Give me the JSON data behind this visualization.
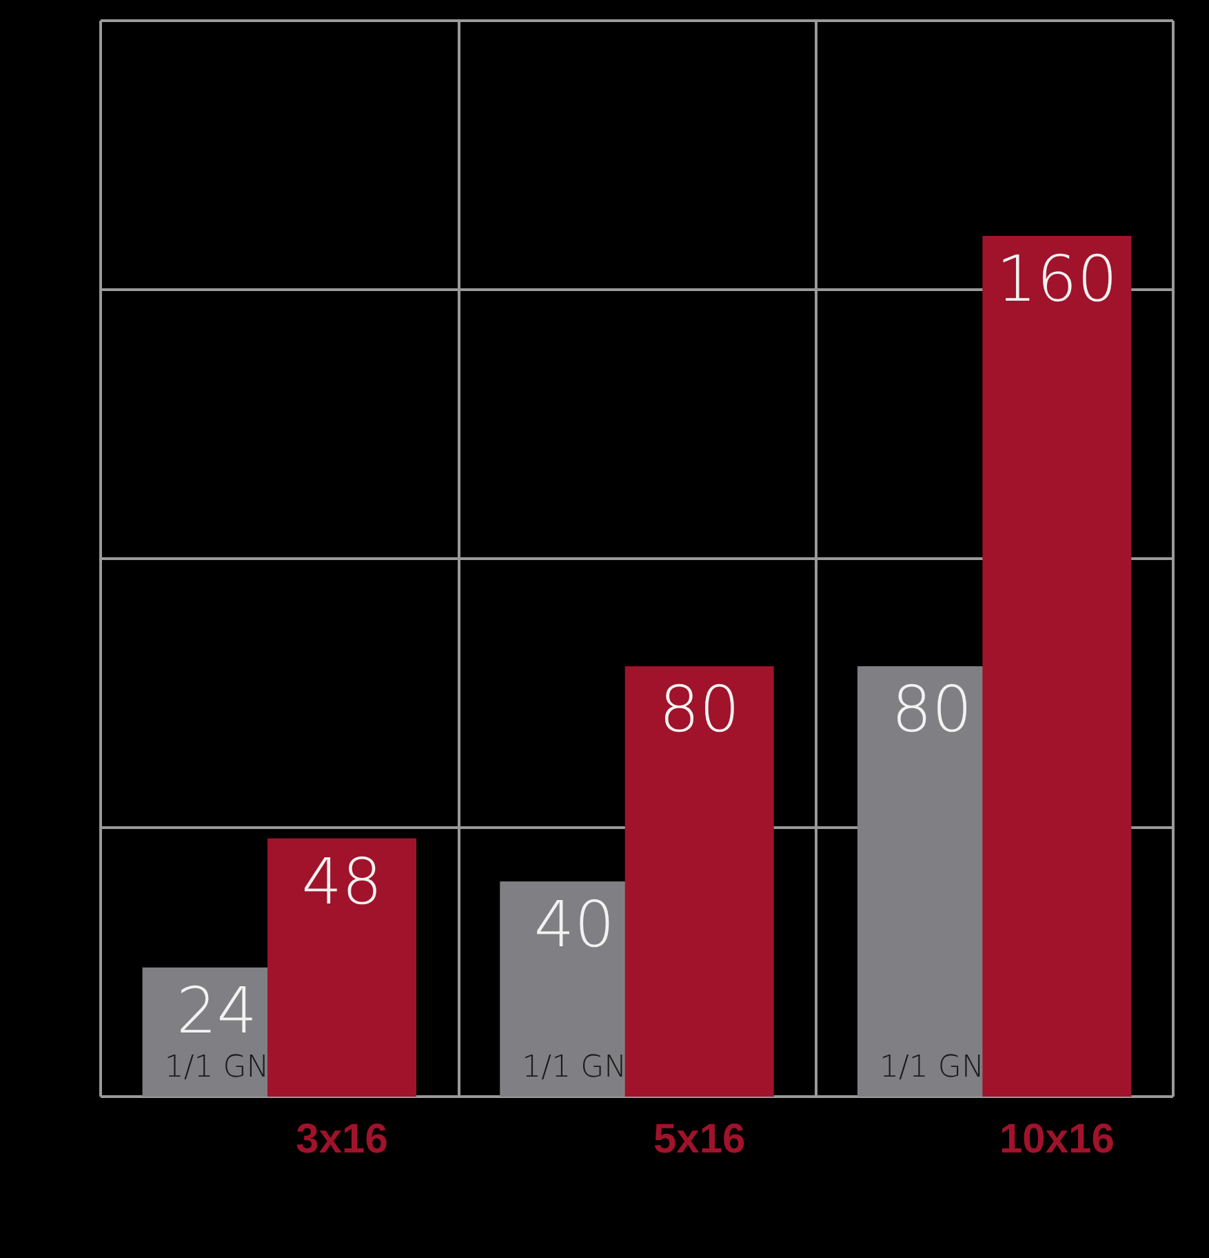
{
  "chart_data": {
    "type": "bar",
    "categories": [
      "3x16",
      "5x16",
      "10x16"
    ],
    "series": [
      {
        "name": "1/1 GN",
        "color": "#808084",
        "values": [
          24,
          40,
          80
        ]
      },
      {
        "color": "#a0132b",
        "values": [
          48,
          80,
          160
        ]
      }
    ],
    "ylim": [
      0,
      200
    ],
    "yticks": [
      {
        "value": 0,
        "label": null
      },
      {
        "value": 50,
        "label": null
      },
      {
        "value": 100,
        "label": null
      },
      {
        "value": 150,
        "label": null
      },
      {
        "value": 200,
        "label": null
      }
    ],
    "grid": true,
    "data_labels": true,
    "tick_labels": "x"
  }
}
